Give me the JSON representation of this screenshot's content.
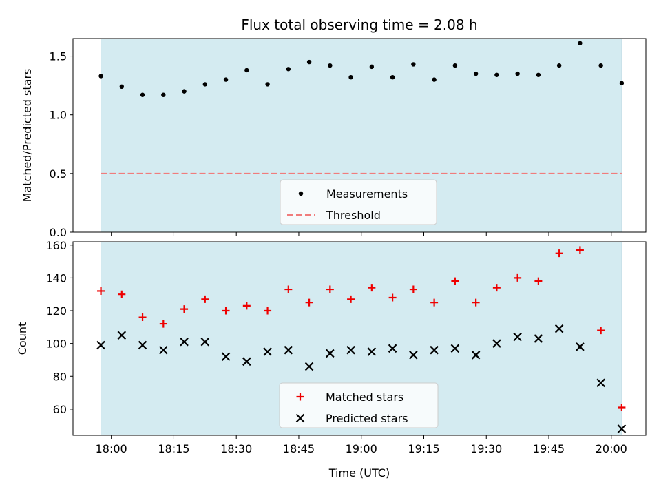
{
  "chart_data": {
    "type": "scatter",
    "title": "Flux total observing time = 2.08 h",
    "xlabel": "Time (UTC)",
    "x_tick_labels": [
      "18:00",
      "18:15",
      "18:30",
      "18:45",
      "19:00",
      "19:15",
      "19:30",
      "19:45",
      "20:00"
    ],
    "x_tick_minutes": [
      0,
      15,
      30,
      45,
      60,
      75,
      90,
      105,
      120
    ],
    "xlim_minutes": [
      -9.2,
      128.3
    ],
    "observing_window_minutes": [
      -2.5,
      122.5
    ],
    "shaded_color": "#d4ebf1",
    "top_panel": {
      "ylabel": "Matched/Predicted stars",
      "ylim": [
        0,
        1.65
      ],
      "y_ticks": [
        0.0,
        0.5,
        1.0,
        1.5
      ],
      "y_tick_labels": [
        "0.0",
        "0.5",
        "1.0",
        "1.5"
      ],
      "series": [
        {
          "name": "Measurements",
          "marker": "dot",
          "color": "#000000",
          "x_minutes": [
            -2.5,
            2.5,
            7.5,
            12.5,
            17.5,
            22.5,
            27.5,
            32.5,
            37.5,
            42.5,
            47.5,
            52.5,
            57.5,
            62.5,
            67.5,
            72.5,
            77.5,
            82.5,
            87.5,
            92.5,
            97.5,
            102.5,
            107.5,
            112.5,
            117.5,
            122.5
          ],
          "y": [
            1.33,
            1.24,
            1.17,
            1.17,
            1.2,
            1.26,
            1.3,
            1.38,
            1.26,
            1.39,
            1.45,
            1.42,
            1.32,
            1.41,
            1.32,
            1.43,
            1.3,
            1.42,
            1.35,
            1.34,
            1.35,
            1.34,
            1.42,
            1.61,
            1.42,
            1.27
          ]
        },
        {
          "name": "Threshold",
          "marker": "dashed-line",
          "color": "#f07c7c",
          "y": 0.5
        }
      ],
      "legend": "lower-center"
    },
    "bottom_panel": {
      "ylabel": "Count",
      "ylim": [
        44,
        162
      ],
      "y_ticks": [
        60,
        80,
        100,
        120,
        140,
        160
      ],
      "y_tick_labels": [
        "60",
        "80",
        "100",
        "120",
        "140",
        "160"
      ],
      "series": [
        {
          "name": "Matched stars",
          "marker": "plus",
          "color": "#ee0000",
          "x_minutes": [
            -2.5,
            2.5,
            7.5,
            12.5,
            17.5,
            22.5,
            27.5,
            32.5,
            37.5,
            42.5,
            47.5,
            52.5,
            57.5,
            62.5,
            67.5,
            72.5,
            77.5,
            82.5,
            87.5,
            92.5,
            97.5,
            102.5,
            107.5,
            112.5,
            117.5,
            122.5
          ],
          "y": [
            132,
            130,
            116,
            112,
            121,
            127,
            120,
            123,
            120,
            133,
            125,
            133,
            127,
            134,
            128,
            133,
            125,
            138,
            125,
            134,
            140,
            138,
            155,
            157,
            108,
            61
          ]
        },
        {
          "name": "Predicted stars",
          "marker": "x",
          "color": "#000000",
          "x_minutes": [
            -2.5,
            2.5,
            7.5,
            12.5,
            17.5,
            22.5,
            27.5,
            32.5,
            37.5,
            42.5,
            47.5,
            52.5,
            57.5,
            62.5,
            67.5,
            72.5,
            77.5,
            82.5,
            87.5,
            92.5,
            97.5,
            102.5,
            107.5,
            112.5,
            117.5,
            122.5
          ],
          "y": [
            99,
            105,
            99,
            96,
            101,
            101,
            92,
            89,
            95,
            96,
            86,
            94,
            96,
            95,
            97,
            93,
            96,
            97,
            93,
            100,
            104,
            103,
            109,
            98,
            76,
            48
          ]
        }
      ],
      "legend": "lower-center"
    }
  }
}
